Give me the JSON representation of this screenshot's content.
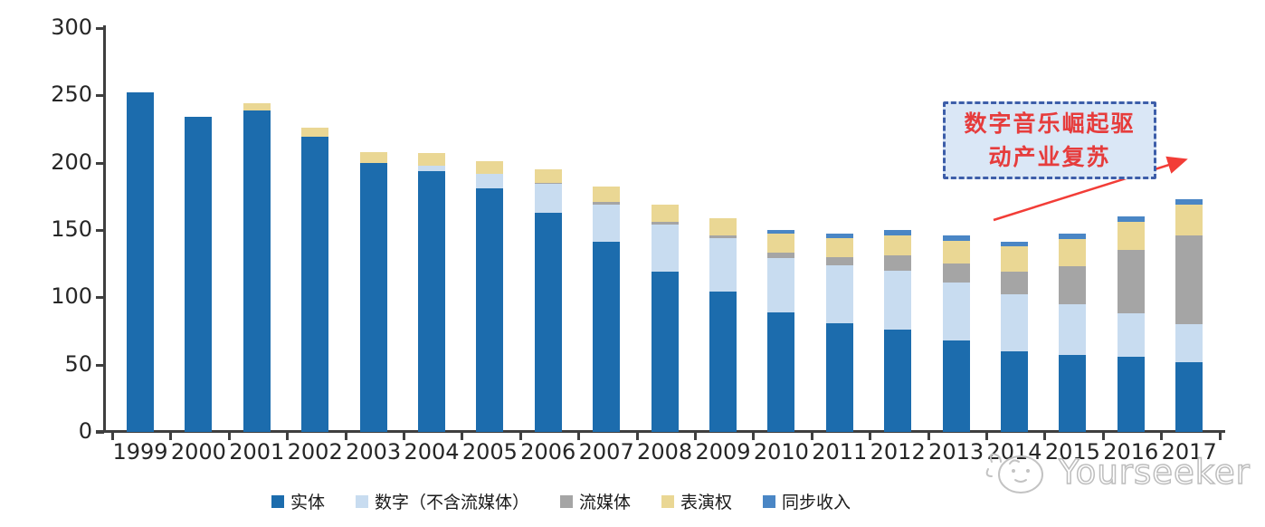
{
  "chart_data": {
    "type": "bar",
    "stacked": true,
    "title": "",
    "xlabel": "",
    "ylabel": "",
    "ylim": [
      0,
      300
    ],
    "yticks": [
      0,
      50,
      100,
      150,
      200,
      250,
      300
    ],
    "grid": false,
    "legend_position": "bottom",
    "categories": [
      "1999",
      "2000",
      "2001",
      "2002",
      "2003",
      "2004",
      "2005",
      "2006",
      "2007",
      "2008",
      "2009",
      "2010",
      "2011",
      "2012",
      "2013",
      "2014",
      "2015",
      "2016",
      "2017"
    ],
    "series": [
      {
        "name": "实体",
        "color": "#1c6cad",
        "values": [
          252,
          234,
          239,
          219,
          200,
          194,
          181,
          163,
          141,
          119,
          104,
          89,
          81,
          76,
          68,
          60,
          57,
          56,
          52
        ]
      },
      {
        "name": "数字（不含流媒体）",
        "color": "#c8dcf0",
        "values": [
          0,
          0,
          0,
          0,
          0,
          4,
          11,
          21,
          28,
          35,
          40,
          40,
          43,
          44,
          43,
          42,
          38,
          32,
          28
        ]
      },
      {
        "name": "流媒体",
        "color": "#a5a5a5",
        "values": [
          0,
          0,
          0,
          0,
          0,
          0,
          0,
          1,
          2,
          2,
          2,
          4,
          6,
          11,
          14,
          17,
          28,
          47,
          66
        ]
      },
      {
        "name": "表演权",
        "color": "#ead794",
        "values": [
          0,
          0,
          5,
          7,
          8,
          9,
          9,
          10,
          11,
          13,
          13,
          14,
          14,
          15,
          17,
          19,
          20,
          21,
          23
        ]
      },
      {
        "name": "同步收入",
        "color": "#4a86c5",
        "values": [
          0,
          0,
          0,
          0,
          0,
          0,
          0,
          0,
          0,
          0,
          0,
          3,
          3,
          4,
          4,
          3,
          4,
          4,
          4
        ]
      }
    ]
  },
  "annotation": {
    "line1": "数字音乐崛起驱",
    "line2": "动产业复苏",
    "box_background": "#dae7f6",
    "box_border_color": "#3d5ea9",
    "text_color": "#e63c3c",
    "arrow_color": "#f23d37"
  },
  "watermark": {
    "text": "Yourseeker",
    "color": "#bdbdbd"
  }
}
